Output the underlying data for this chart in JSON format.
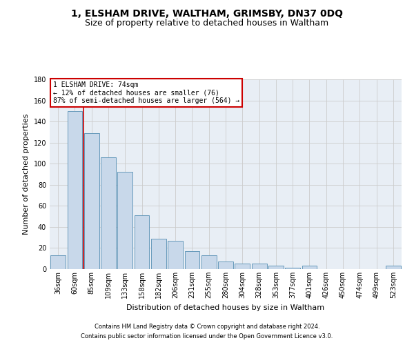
{
  "title1": "1, ELSHAM DRIVE, WALTHAM, GRIMSBY, DN37 0DQ",
  "title2": "Size of property relative to detached houses in Waltham",
  "xlabel": "Distribution of detached houses by size in Waltham",
  "ylabel": "Number of detached properties",
  "footnote1": "Contains HM Land Registry data © Crown copyright and database right 2024.",
  "footnote2": "Contains public sector information licensed under the Open Government Licence v3.0.",
  "categories": [
    "36sqm",
    "60sqm",
    "85sqm",
    "109sqm",
    "133sqm",
    "158sqm",
    "182sqm",
    "206sqm",
    "231sqm",
    "255sqm",
    "280sqm",
    "304sqm",
    "328sqm",
    "353sqm",
    "377sqm",
    "401sqm",
    "426sqm",
    "450sqm",
    "474sqm",
    "499sqm",
    "523sqm"
  ],
  "bar_heights": [
    13,
    150,
    129,
    106,
    92,
    51,
    29,
    27,
    17,
    13,
    7,
    5,
    5,
    3,
    1,
    3,
    0,
    0,
    0,
    0,
    3
  ],
  "ylim": [
    0,
    180
  ],
  "yticks": [
    0,
    20,
    40,
    60,
    80,
    100,
    120,
    140,
    160,
    180
  ],
  "bar_color": "#c8d8ea",
  "bar_edge_color": "#6699bb",
  "grid_color": "#cccccc",
  "vline_color": "#cc0000",
  "vline_x": 1.5,
  "annotation_text": "1 ELSHAM DRIVE: 74sqm\n← 12% of detached houses are smaller (76)\n87% of semi-detached houses are larger (564) →",
  "annotation_box_color": "#ffffff",
  "annotation_box_edge": "#cc0000",
  "background_color": "#ffffff",
  "plot_bg_color": "#e8eef5",
  "title1_fontsize": 10,
  "title2_fontsize": 9,
  "axis_fontsize": 8,
  "tick_fontsize": 7,
  "annotation_fontsize": 7,
  "footnote_fontsize": 6
}
